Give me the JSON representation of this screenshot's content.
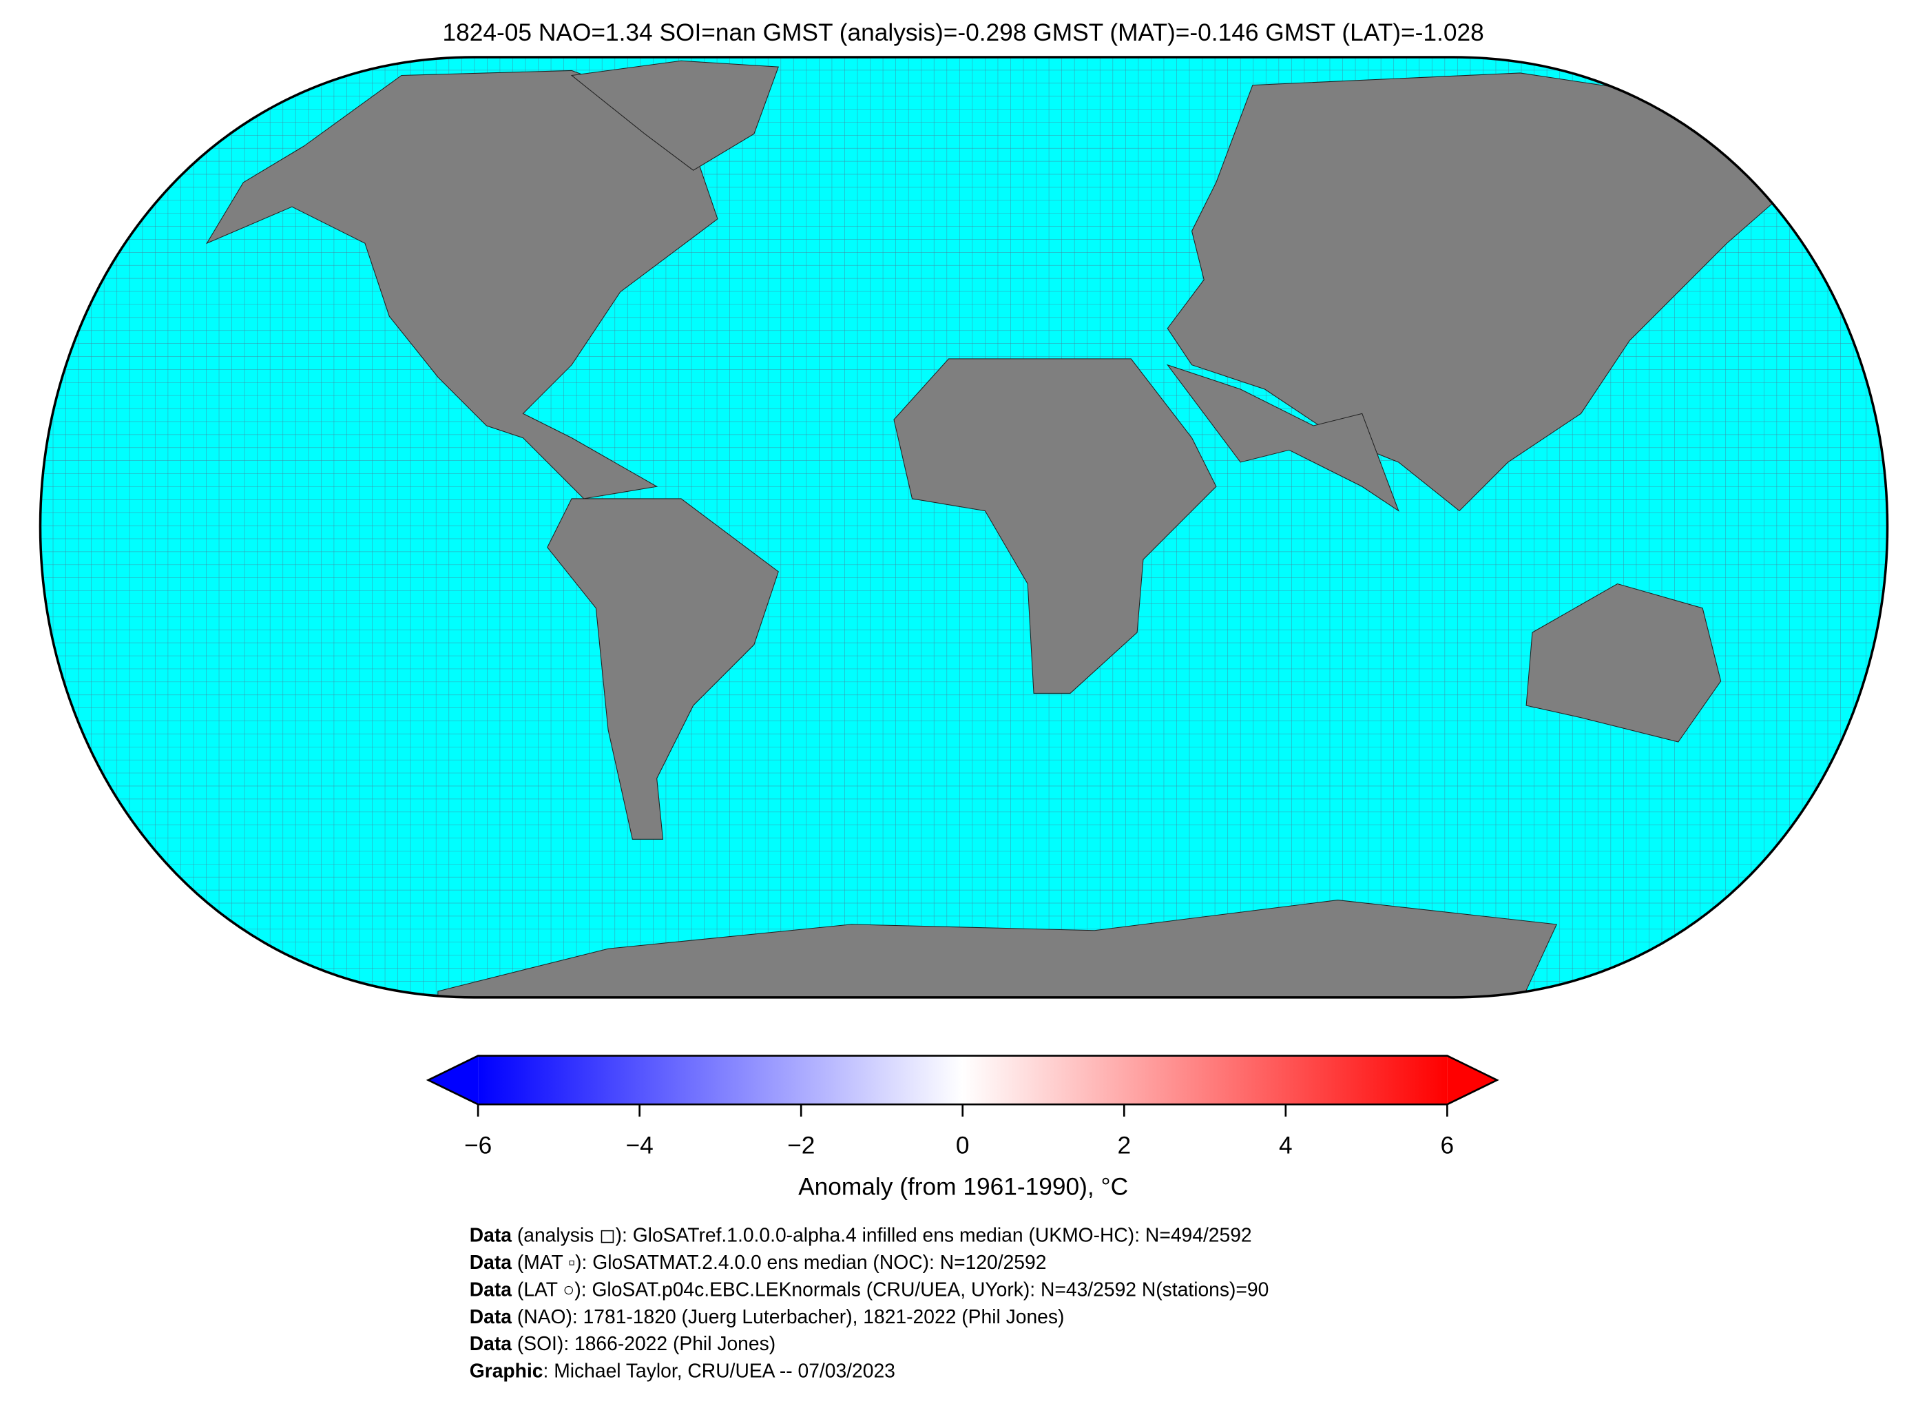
{
  "title": "1824-05 NAO=1.34 SOI=nan GMST (analysis)=-0.298 GMST (MAT)=-0.146 GMST (LAT)=-1.028",
  "colorbar": {
    "lim": [
      -6,
      6
    ],
    "ticks": [
      {
        "value": -6,
        "label": "−6"
      },
      {
        "value": -4,
        "label": "−4"
      },
      {
        "value": -2,
        "label": "−2"
      },
      0,
      2,
      4,
      6
    ],
    "label": "Anomaly (from 1961-1990), °C"
  },
  "credits": [
    {
      "label": "Data",
      "text": " (analysis ◻): GloSATref.1.0.0.0-alpha.4 infilled ens median (UKMO-HC): N=494/2592"
    },
    {
      "label": "Data",
      "text": " (MAT ▫): GloSATMAT.2.4.0.0 ens median (NOC): N=120/2592"
    },
    {
      "label": "Data",
      "text": " (LAT ○): GloSAT.p04c.EBC.LEKnormals (CRU/UEA, UYork): N=43/2592 N(stations)=90"
    },
    {
      "label": "Data",
      "text": " (NAO): 1781-1820 (Juerg Luterbacher), 1821-2022 (Phil Jones)"
    },
    {
      "label": "Data",
      "text": " (SOI): 1866-2022 (Phil Jones)"
    },
    {
      "label": "Graphic",
      "text": ": Michael Taylor, CRU/UEA -- 07/03/2023"
    }
  ]
}
